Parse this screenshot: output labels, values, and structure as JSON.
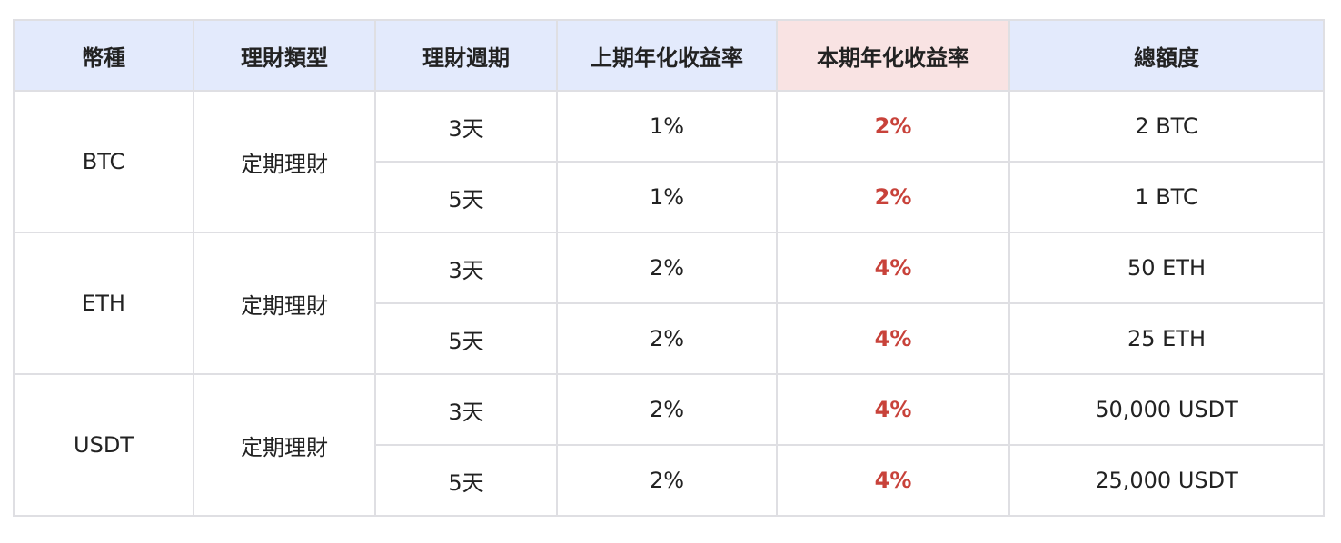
{
  "colors": {
    "header_bg": "#e3eafc",
    "highlight_header_bg": "#f9e3e3",
    "highlight_text": "#c8423a",
    "border": "#dfdfe3"
  },
  "headers": [
    "幣種",
    "理財類型",
    "理財週期",
    "上期年化收益率",
    "本期年化收益率",
    "總額度"
  ],
  "groups": [
    {
      "coin": "BTC",
      "type": "定期理財",
      "rows": [
        {
          "period": "3天",
          "prev": "1%",
          "curr": "2%",
          "total": "2 BTC"
        },
        {
          "period": "5天",
          "prev": "1%",
          "curr": "2%",
          "total": "1 BTC"
        }
      ]
    },
    {
      "coin": "ETH",
      "type": "定期理財",
      "rows": [
        {
          "period": "3天",
          "prev": "2%",
          "curr": "4%",
          "total": "50 ETH"
        },
        {
          "period": "5天",
          "prev": "2%",
          "curr": "4%",
          "total": "25 ETH"
        }
      ]
    },
    {
      "coin": "USDT",
      "type": "定期理財",
      "rows": [
        {
          "period": "3天",
          "prev": "2%",
          "curr": "4%",
          "total": "50,000 USDT"
        },
        {
          "period": "5天",
          "prev": "2%",
          "curr": "4%",
          "total": "25,000 USDT"
        }
      ]
    }
  ]
}
